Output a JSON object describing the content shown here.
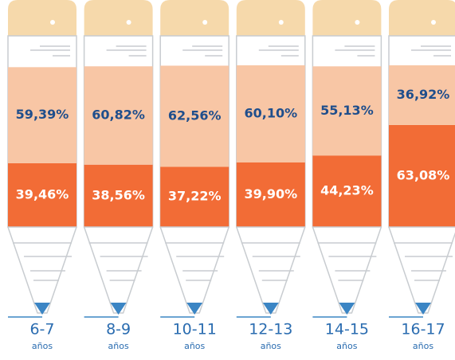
{
  "chart_data": {
    "type": "bar",
    "stacked": true,
    "categories": [
      "6-7",
      "8-9",
      "10-11",
      "12-13",
      "14-15",
      "16-17"
    ],
    "x_sublabel": "años",
    "ylim": [
      0,
      100
    ],
    "series": [
      {
        "color": "#f26c36",
        "values": [
          39.46,
          38.56,
          37.22,
          39.9,
          44.23,
          63.08
        ],
        "value_labels": [
          "39,46%",
          "38,56%",
          "37,22%",
          "39,90%",
          "44,23%",
          "63,08%"
        ]
      },
      {
        "color": "#f8c6a5",
        "values": [
          59.39,
          60.82,
          62.56,
          60.1,
          55.13,
          36.92
        ],
        "value_labels": [
          "59,39%",
          "60,82%",
          "62,56%",
          "60,10%",
          "55,13%",
          "36,92%"
        ]
      }
    ]
  }
}
